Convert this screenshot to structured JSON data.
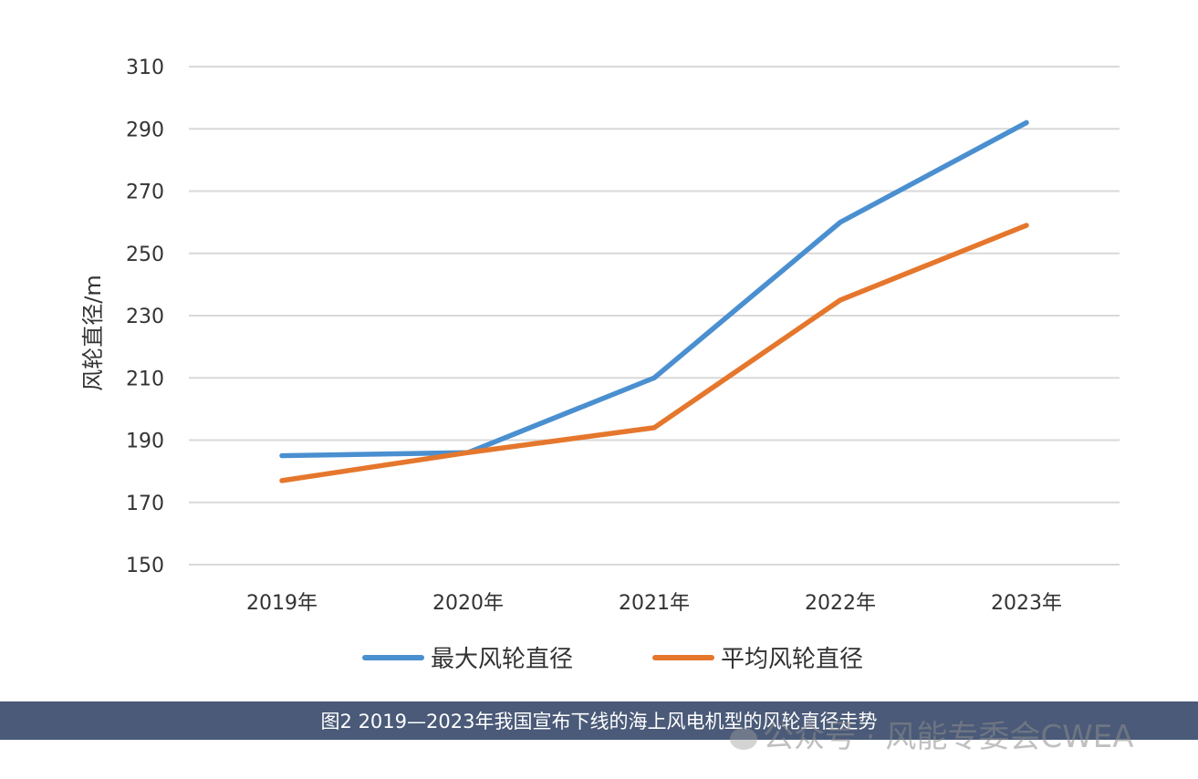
{
  "chart_data": {
    "type": "line",
    "categories": [
      "2019年",
      "2020年",
      "2021年",
      "2022年",
      "2023年"
    ],
    "series": [
      {
        "name": "最大风轮直径",
        "values": [
          185,
          186,
          210,
          260,
          292
        ],
        "color": "#4a8fd0"
      },
      {
        "name": "平均风轮直径",
        "values": [
          177,
          186,
          194,
          235,
          259
        ],
        "color": "#e5772d"
      }
    ],
    "ylabel": "风轮直径/m",
    "xlabel": "",
    "ylim": [
      150,
      310
    ],
    "yticks": [
      150,
      170,
      190,
      210,
      230,
      250,
      270,
      290,
      310
    ],
    "grid": true,
    "legend_position": "bottom"
  },
  "caption": "图2 2019—2023年我国宣布下线的海上风电机型的风轮直径走势",
  "watermark": "公众号 · 风能专委会CWEA",
  "colors": {
    "caption_bg": "#4a5a78",
    "grid": "#d9d9d9"
  }
}
